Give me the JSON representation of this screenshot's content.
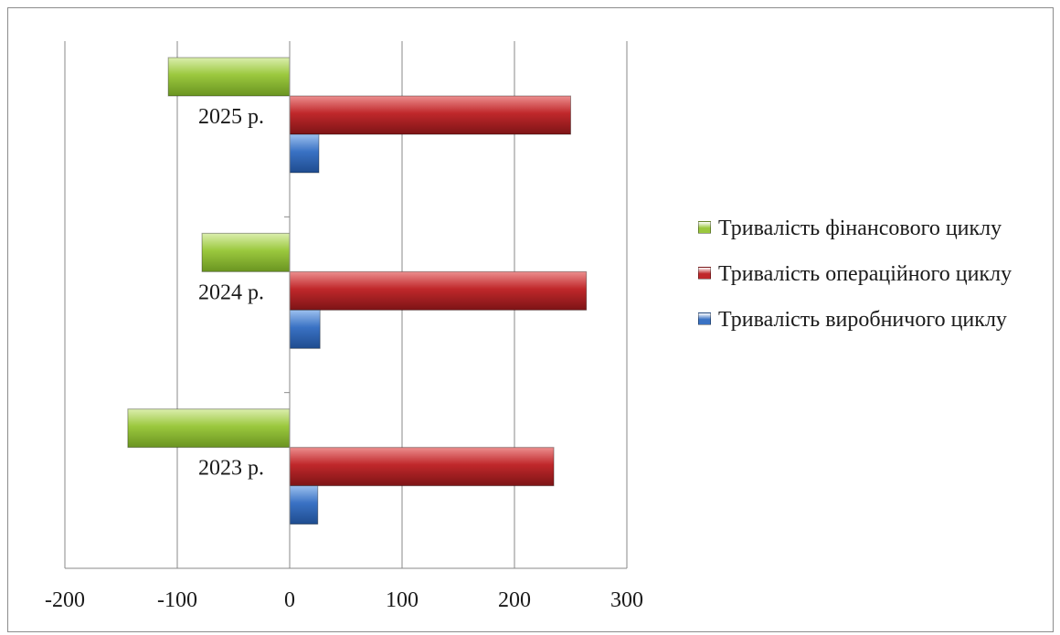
{
  "chart_data": {
    "type": "bar",
    "orientation": "horizontal",
    "categories": [
      "2023  р.",
      "2024  р.",
      "2025  р."
    ],
    "series": [
      {
        "name": "Тривалість виробничого циклу",
        "values": [
          25,
          27,
          26
        ],
        "color": "#3a72c4"
      },
      {
        "name": "Тривалість операційного циклу",
        "values": [
          235,
          264,
          250
        ],
        "color": "#c0282b"
      },
      {
        "name": "Тривалість фінансового циклу",
        "values": [
          -144,
          -78,
          -108
        ],
        "color": "#9bc83e"
      }
    ],
    "xlim": [
      -200,
      300
    ],
    "x_ticks": [
      "-200",
      "-100",
      "0",
      "100",
      "200",
      "300"
    ],
    "grid": "vertical",
    "legend_position": "right",
    "legend_order": [
      "Тривалість фінансового циклу",
      "Тривалість операційного циклу",
      "Тривалість виробничого циклу"
    ],
    "title": "",
    "xlabel": "",
    "ylabel": ""
  }
}
